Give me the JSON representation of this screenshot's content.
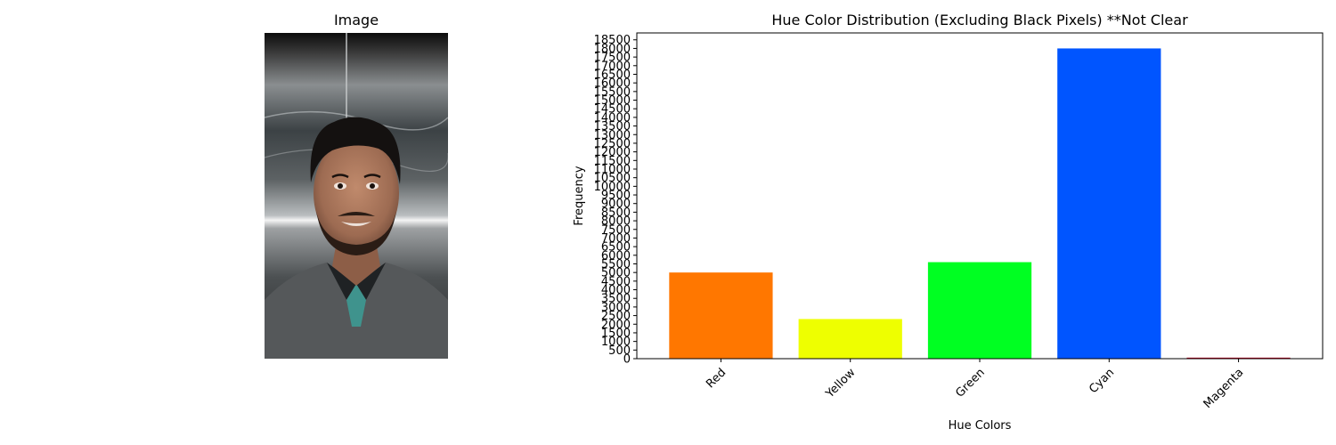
{
  "image_panel": {
    "title": "Image"
  },
  "chart_data": {
    "type": "bar",
    "title": "Hue Color Distribution (Excluding Black Pixels) **Not Clear",
    "xlabel": "Hue Colors",
    "ylabel": "Frequency",
    "categories": [
      "Red",
      "Yellow",
      "Green",
      "Cyan",
      "Magenta"
    ],
    "values": [
      5000,
      2300,
      5600,
      18000,
      60
    ],
    "colors": [
      "#ff7700",
      "#eeff00",
      "#00ff22",
      "#0055ff",
      "#cc0022"
    ],
    "ylim": [
      0,
      18900
    ],
    "ytick_step": 500,
    "ytick_max": 18500,
    "xtick_rotation": 45,
    "grid": false,
    "legend": "none"
  }
}
